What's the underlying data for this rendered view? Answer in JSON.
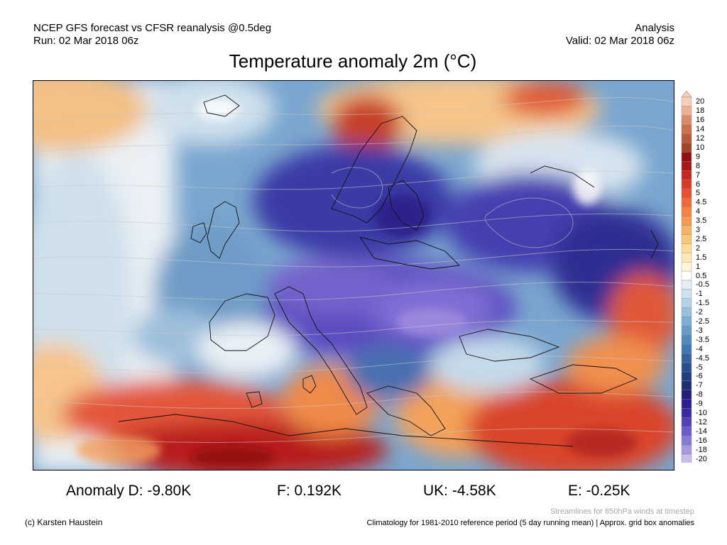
{
  "header": {
    "model": "NCEP GFS forecast vs CFSR reanalysis @0.5deg",
    "run": "Run: 02 Mar 2018 06z",
    "type": "Analysis",
    "valid": "Valid: 02 Mar 2018 06z"
  },
  "title": "Temperature anomaly 2m (°C)",
  "legend": {
    "labels": [
      "20",
      "18",
      "16",
      "14",
      "12",
      "10",
      "9",
      "8",
      "7",
      "6",
      "5",
      "4.5",
      "4",
      "3.5",
      "3",
      "2.5",
      "2",
      "1.5",
      "1",
      "0.5",
      "-0.5",
      "-1",
      "-1.5",
      "-2",
      "-2.5",
      "-3",
      "-3.5",
      "-4",
      "-4.5",
      "-5",
      "-6",
      "-7",
      "-8",
      "-9",
      "-10",
      "-12",
      "-14",
      "-16",
      "-18",
      "-20"
    ],
    "colors": [
      "#f7cfb8",
      "#eeb195",
      "#d98b6c",
      "#c7714f",
      "#b65a3b",
      "#a04629",
      "#8e1010",
      "#a81818",
      "#c42820",
      "#d83a26",
      "#e6502e",
      "#ee6a38",
      "#f28244",
      "#f59a52",
      "#f8b264",
      "#fac87a",
      "#fcdc96",
      "#fde9b4",
      "#fff6d8",
      "#ffffff",
      "#e4eef6",
      "#cde1ef",
      "#b3d1e7",
      "#98c0de",
      "#7eaed4",
      "#679cc9",
      "#528abe",
      "#4076b1",
      "#3262a3",
      "#284f93",
      "#223e82",
      "#1c2f72",
      "#221f7a",
      "#2d1f8e",
      "#3b2ba3",
      "#5540b8",
      "#6e5ac8",
      "#8a78d6",
      "#a998e2",
      "#c8bbee"
    ]
  },
  "stats": {
    "d": "Anomaly D: -9.80K",
    "f": "F: 0.192K",
    "uk": "UK: -4.58K",
    "e": "E: -0.25K"
  },
  "footer": {
    "copyright": "(c) Karsten Haustein",
    "streamlines": "Streamlines for 850hPa winds at timestep",
    "climatology": "Climatology for 1981-2010 reference period (5 day running mean) | Approx. grid box anomalies"
  }
}
